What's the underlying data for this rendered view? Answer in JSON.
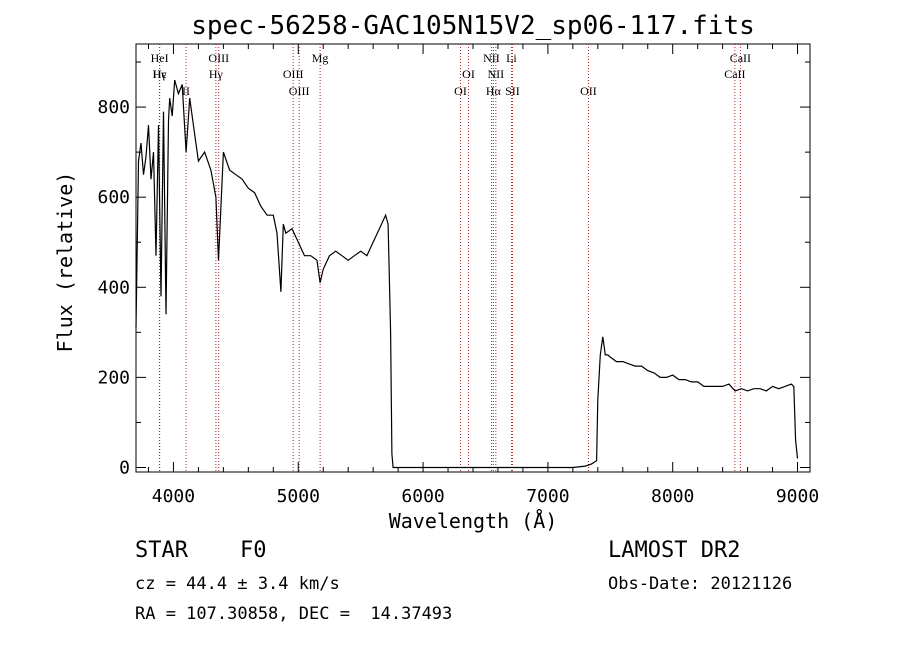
{
  "chart_data": {
    "type": "line",
    "title": "spec-56258-GAC105N15V2_sp06-117.fits",
    "xlabel": "Wavelength (Å)",
    "ylabel": "Flux (relative)",
    "xlim": [
      3700,
      9100
    ],
    "ylim": [
      -10,
      940
    ],
    "xticks": [
      4000,
      5000,
      6000,
      7000,
      8000,
      9000
    ],
    "yticks": [
      0,
      200,
      400,
      600,
      800
    ],
    "grid": false,
    "legend": "none",
    "line_color": "#000000",
    "marker_line_color": "#b22222",
    "series": [
      {
        "x": [
          3700,
          3720,
          3740,
          3760,
          3780,
          3800,
          3820,
          3840,
          3860,
          3880,
          3900,
          3920,
          3940,
          3960,
          3970,
          3990,
          4010,
          4040,
          4070,
          4101,
          4130,
          4160,
          4200,
          4250,
          4300,
          4340,
          4361,
          4400,
          4450,
          4500,
          4550,
          4600,
          4650,
          4700,
          4750,
          4800,
          4830,
          4861,
          4880,
          4900,
          4950,
          5000,
          5050,
          5100,
          5150,
          5175,
          5200,
          5250,
          5300,
          5350,
          5400,
          5450,
          5500,
          5550,
          5600,
          5650,
          5700,
          5720,
          5740,
          5750,
          5760,
          5780,
          5800,
          6000,
          6500,
          7000,
          7200,
          7300,
          7350,
          7390,
          7400,
          7420,
          7440,
          7460,
          7480,
          7500,
          7550,
          7600,
          7650,
          7700,
          7750,
          7800,
          7850,
          7900,
          7950,
          8000,
          8050,
          8100,
          8150,
          8200,
          8250,
          8300,
          8350,
          8400,
          8450,
          8500,
          8550,
          8600,
          8650,
          8700,
          8750,
          8800,
          8850,
          8900,
          8950,
          8970,
          8985,
          9000
        ],
        "y": [
          310,
          680,
          720,
          650,
          690,
          760,
          640,
          700,
          470,
          760,
          380,
          790,
          340,
          770,
          820,
          780,
          860,
          830,
          850,
          700,
          820,
          760,
          680,
          700,
          660,
          600,
          460,
          700,
          660,
          650,
          640,
          620,
          610,
          580,
          560,
          560,
          520,
          390,
          540,
          520,
          530,
          500,
          470,
          470,
          460,
          410,
          440,
          470,
          480,
          470,
          460,
          470,
          480,
          470,
          500,
          530,
          560,
          540,
          300,
          30,
          0,
          0,
          0,
          0,
          0,
          0,
          0,
          3,
          8,
          15,
          150,
          250,
          290,
          250,
          250,
          245,
          235,
          235,
          230,
          225,
          225,
          215,
          210,
          200,
          200,
          205,
          195,
          195,
          190,
          190,
          180,
          180,
          180,
          180,
          185,
          170,
          175,
          170,
          175,
          175,
          170,
          180,
          175,
          180,
          185,
          180,
          60,
          20
        ]
      }
    ],
    "line_markers": [
      {
        "label": "Hϵ",
        "x": 3889,
        "row": 1
      },
      {
        "label": "HeI",
        "x": 3889,
        "row": 0
      },
      {
        "label": "Hγ",
        "x": 3888,
        "row": 1
      },
      {
        "label": "II",
        "x": 4101,
        "row": 2
      },
      {
        "label": "OIII",
        "x": 4363,
        "row": 0
      },
      {
        "label": "Hγ",
        "x": 4340,
        "row": 1
      },
      {
        "label": "OIII",
        "x": 4959,
        "row": 1
      },
      {
        "label": "OIII",
        "x": 5007,
        "row": 2
      },
      {
        "label": "Mg",
        "x": 5175,
        "row": 0
      },
      {
        "label": "OI",
        "x": 6300,
        "row": 2
      },
      {
        "label": "OI",
        "x": 6364,
        "row": 1
      },
      {
        "label": "NII",
        "x": 6548,
        "row": 0
      },
      {
        "label": "NII",
        "x": 6583,
        "row": 1
      },
      {
        "label": "Hα",
        "x": 6563,
        "row": 2
      },
      {
        "label": "SII",
        "x": 6716,
        "row": 2
      },
      {
        "label": "Li",
        "x": 6708,
        "row": 0
      },
      {
        "label": "OII",
        "x": 7325,
        "row": 2
      },
      {
        "label": "CaII",
        "x": 8542,
        "row": 0
      },
      {
        "label": "CaII",
        "x": 8498,
        "row": 1
      }
    ]
  },
  "info": {
    "class_label": "STAR",
    "subclass": "F0",
    "survey": "LAMOST DR2",
    "cz_line": "cz = 44.4 ± 3.4 km/s",
    "obs_date": "Obs-Date: 20121126",
    "coords": "RA = 107.30858, DEC =  14.37493"
  }
}
